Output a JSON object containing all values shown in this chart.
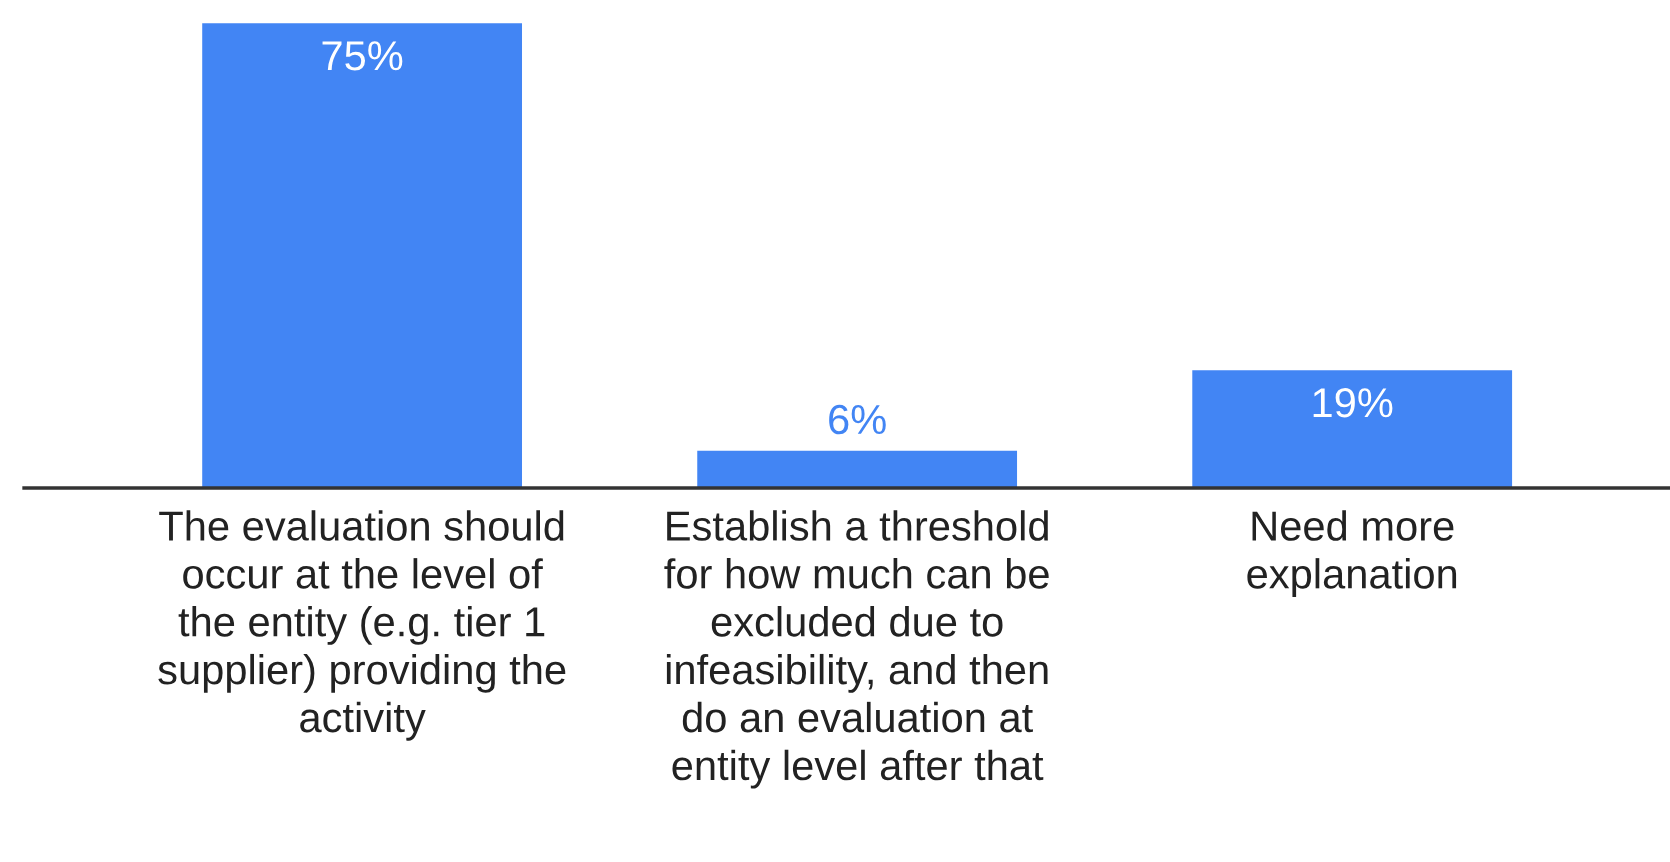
{
  "chart_data": {
    "type": "bar",
    "categories": [
      "The evaluation should\noccur at the level of\nthe entity (e.g. tier 1\nsupplier) providing the\nactivity",
      "Establish a threshold\nfor how much can be\nexcluded due to\ninfeasibility, and then\ndo an evaluation at\nentity level after that",
      "Need more\nexplanation"
    ],
    "values": [
      75,
      6,
      19
    ],
    "value_labels": [
      "75%",
      "6%",
      "19%"
    ],
    "color": "#4285f4",
    "grid": false,
    "legend": false
  }
}
